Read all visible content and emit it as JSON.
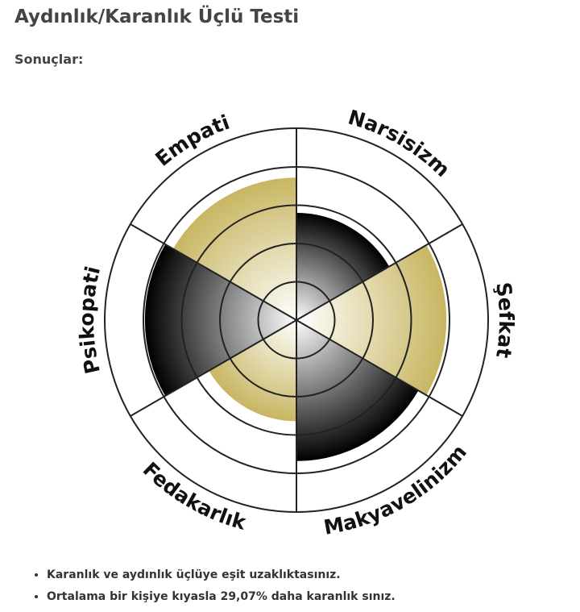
{
  "header": {
    "title": "Aydınlık/Karanlık Üçlü Testi",
    "subtitle": "Sonuçlar:"
  },
  "chart_data": {
    "type": "polar",
    "categories": [
      "Empati",
      "Narsisizm",
      "Şefkat",
      "Makyavelinizm",
      "Fedakarlık",
      "Psikopati"
    ],
    "values": [
      93,
      70,
      98,
      92,
      66,
      99
    ],
    "colors": [
      "#c8b662",
      "#000000",
      "#c8b662",
      "#000000",
      "#c8b662",
      "#000000"
    ],
    "rlim": [
      0,
      100
    ],
    "rticks": [
      25,
      50,
      75,
      100
    ],
    "grid": true
  },
  "notes": [
    "Karanlık ve aydınlık üçlüye eşit uzaklıktasınız.",
    "Ortalama bir kişiye kıyasla 29,07% daha karanlık sınız."
  ]
}
